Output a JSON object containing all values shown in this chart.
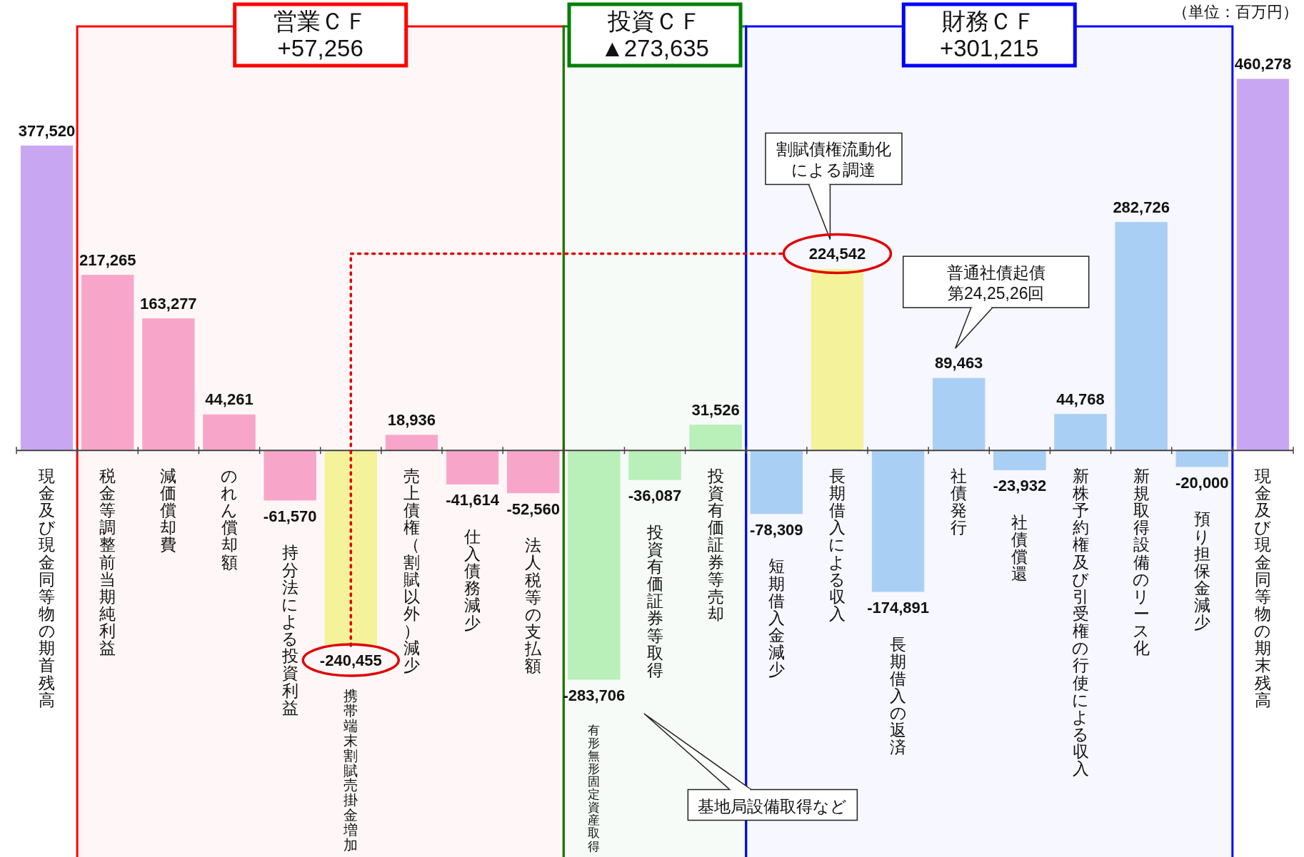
{
  "chart_data": {
    "type": "bar",
    "categories": [
      "現金及び現金同等物の期首残高",
      "税金等調整前当期純利益",
      "減価償却費",
      "のれん償却額",
      "持分法による投資利益",
      "携帯端末割賦売掛金増加",
      "売上債権（割賦以外）減少",
      "仕入債務減少",
      "法人税等の支払額",
      "有形無形固定資産取得",
      "投資有価証券等取得",
      "投資有価証券等売却",
      "短期借入金減少",
      "長期借入による収入",
      "長期借入の返済",
      "社債発行",
      "社債償還",
      "新株予約権及び引受権の行使による収入",
      "新規取得設備のリース化",
      "預り担保金減少",
      "現金及び現金同等物の期末残高"
    ],
    "values": [
      377520,
      217265,
      163277,
      44261,
      -61570,
      -240455,
      18936,
      -41614,
      -52560,
      -283706,
      -36087,
      31526,
      -78309,
      224542,
      -174891,
      89463,
      -23932,
      44768,
      282726,
      -20000,
      460278
    ],
    "value_labels": [
      "377,520",
      "217,265",
      "163,277",
      "44,261",
      "-61,570",
      "-240,455",
      "18,936",
      "-41,614",
      "-52,560",
      "-283,706",
      "-36,087",
      "31,526",
      "-78,309",
      "224,542",
      "-174,891",
      "89,463",
      "-23,932",
      "44,768",
      "282,726",
      "-20,000",
      "460,278"
    ],
    "colors": [
      "#c9a6f2",
      "#f7a6c9",
      "#f7a6c9",
      "#f7a6c9",
      "#f7a6c9",
      "#f4f29a",
      "#f7a6c9",
      "#f7a6c9",
      "#f7a6c9",
      "#b9efb9",
      "#b9efb9",
      "#b9efb9",
      "#a9cff5",
      "#f4f29a",
      "#a9cff5",
      "#a9cff5",
      "#a9cff5",
      "#a9cff5",
      "#a9cff5",
      "#a9cff5",
      "#c9a6f2"
    ],
    "bands": [
      {
        "axis": "x",
        "from": "税金等調整前当期純利益",
        "to": "法人税等の支払額",
        "label": "営業ＣＦ +57,256",
        "color": "#ff0000"
      },
      {
        "axis": "x",
        "from": "有形無形固定資産取得",
        "to": "投資有価証券等売却",
        "label": "投資ＣＦ ▲273,635",
        "color": "#008000"
      },
      {
        "axis": "x",
        "from": "短期借入金減少",
        "to": "預り担保金減少",
        "label": "財務ＣＦ +301,215",
        "color": "#0000ff"
      }
    ],
    "annotations": [
      "（単位：百万円）",
      "割賦債権流動化による調達",
      "普通社債起債第24,25,26回",
      "基地局設備取得など"
    ]
  }
}
